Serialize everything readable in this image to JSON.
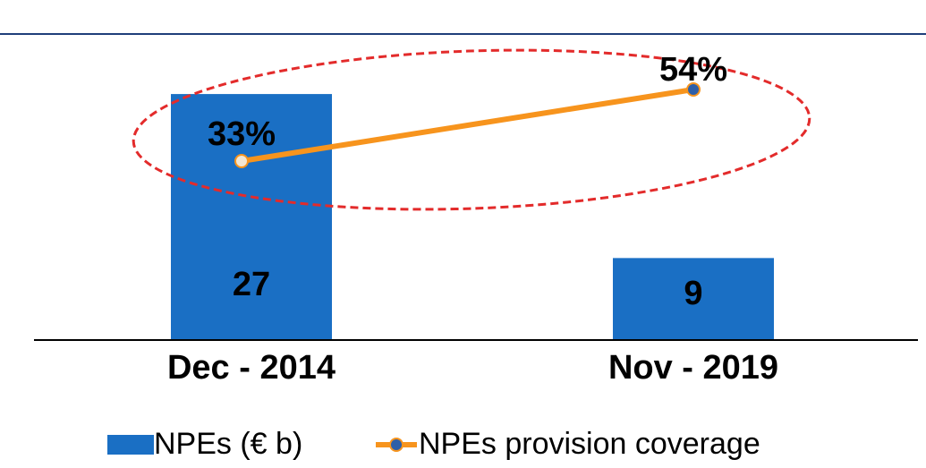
{
  "chart_data": {
    "type": "bar",
    "categories": [
      "Dec - 2014",
      "Nov - 2019"
    ],
    "series": [
      {
        "name": "NPEs (€ b)",
        "type": "bar",
        "color": "#1a6fc4",
        "values": [
          27,
          9
        ]
      },
      {
        "name": "NPEs provision coverage",
        "type": "line",
        "axis": "y2",
        "color": "#f7941d",
        "marker_color": "#2e5fa8",
        "values": [
          33,
          54
        ],
        "value_labels": [
          "33%",
          "54%"
        ]
      }
    ],
    "ylim": [
      0,
      27.5
    ],
    "y2lim": [
      -19.5,
      54
    ]
  }
}
